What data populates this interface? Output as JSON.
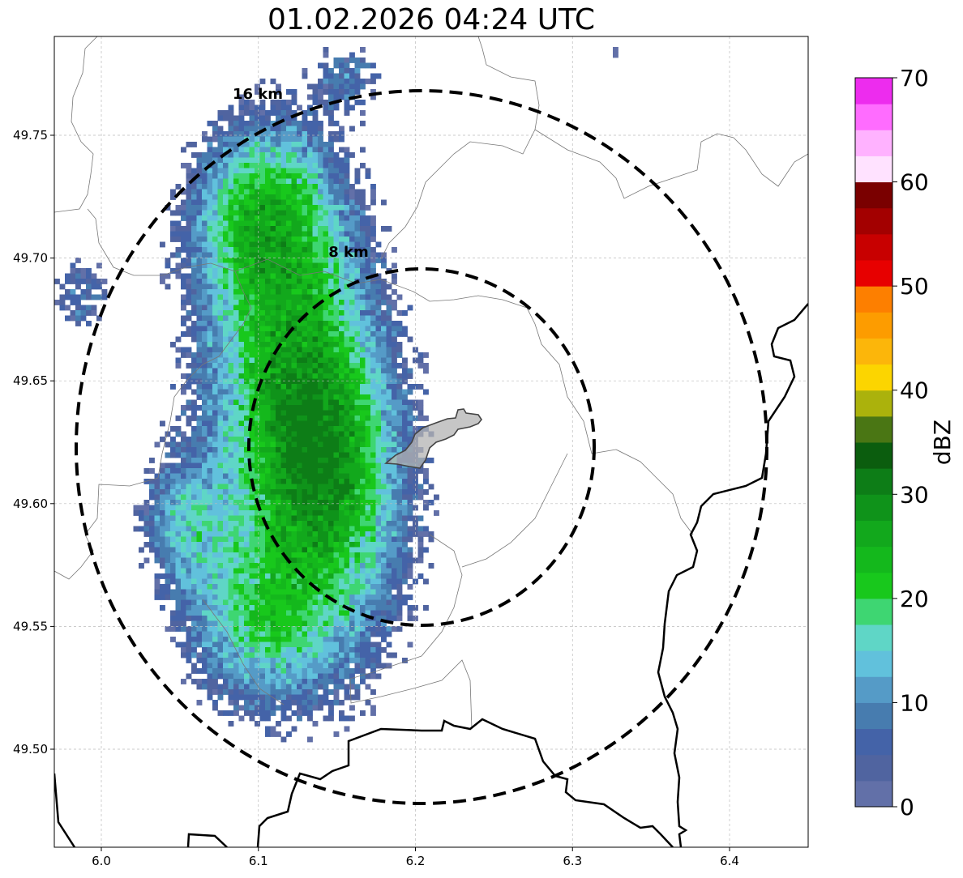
{
  "title": "01.02.2026 04:24 UTC",
  "map": {
    "x_range": [
      5.97,
      6.45
    ],
    "y_range": [
      49.46,
      49.79
    ],
    "x_ticks": [
      6.0,
      6.1,
      6.2,
      6.3,
      6.4
    ],
    "x_tick_labels": [
      "6.0",
      "6.1",
      "6.2",
      "6.3",
      "6.4"
    ],
    "y_ticks": [
      49.5,
      49.55,
      49.6,
      49.65,
      49.7,
      49.75
    ],
    "y_tick_labels": [
      "49.50",
      "49.55",
      "49.60",
      "49.65",
      "49.70",
      "49.75"
    ],
    "grid": true,
    "rings": [
      {
        "label": "16 km",
        "center": [
          6.2035,
          49.6235
        ],
        "radius_km": 16
      },
      {
        "label": "8 km",
        "center": [
          6.2035,
          49.6235
        ],
        "radius_km": 8
      }
    ]
  },
  "colorbar": {
    "label": "dBZ",
    "min": 0,
    "max": 70,
    "ticks": [
      0,
      10,
      20,
      30,
      40,
      50,
      60,
      70
    ],
    "tick_labels": [
      "0",
      "10",
      "20",
      "30",
      "40",
      "50",
      "60",
      "70"
    ],
    "colors": [
      "#6270a8",
      "#5064a0",
      "#4463a8",
      "#477caf",
      "#559bc7",
      "#61c1dc",
      "#5fd6c6",
      "#3ed672",
      "#18c81c",
      "#14b81c",
      "#12a81c",
      "#0f931a",
      "#0d7d17",
      "#0b5d0e",
      "#4a7614",
      "#abb20c",
      "#fcd500",
      "#fcb60a",
      "#fd9c00",
      "#fd7f00",
      "#e70000",
      "#c80000",
      "#a30000",
      "#7a0000",
      "#ffe2ff",
      "#ffb2ff",
      "#ff6cff",
      "#ed2cee"
    ]
  },
  "chart_data": {
    "type": "heatmap",
    "title": "01.02.2026 04:24 UTC",
    "xlabel": "",
    "ylabel": "",
    "xlim": [
      5.97,
      6.45
    ],
    "ylim": [
      49.46,
      49.79
    ],
    "value_label": "dBZ",
    "value_range": [
      0,
      70
    ],
    "description_of_values": "Radar reflectivity cells; peak ~30 dBZ in band west-southwest of center",
    "ring_radii_km": [
      8,
      16
    ]
  }
}
